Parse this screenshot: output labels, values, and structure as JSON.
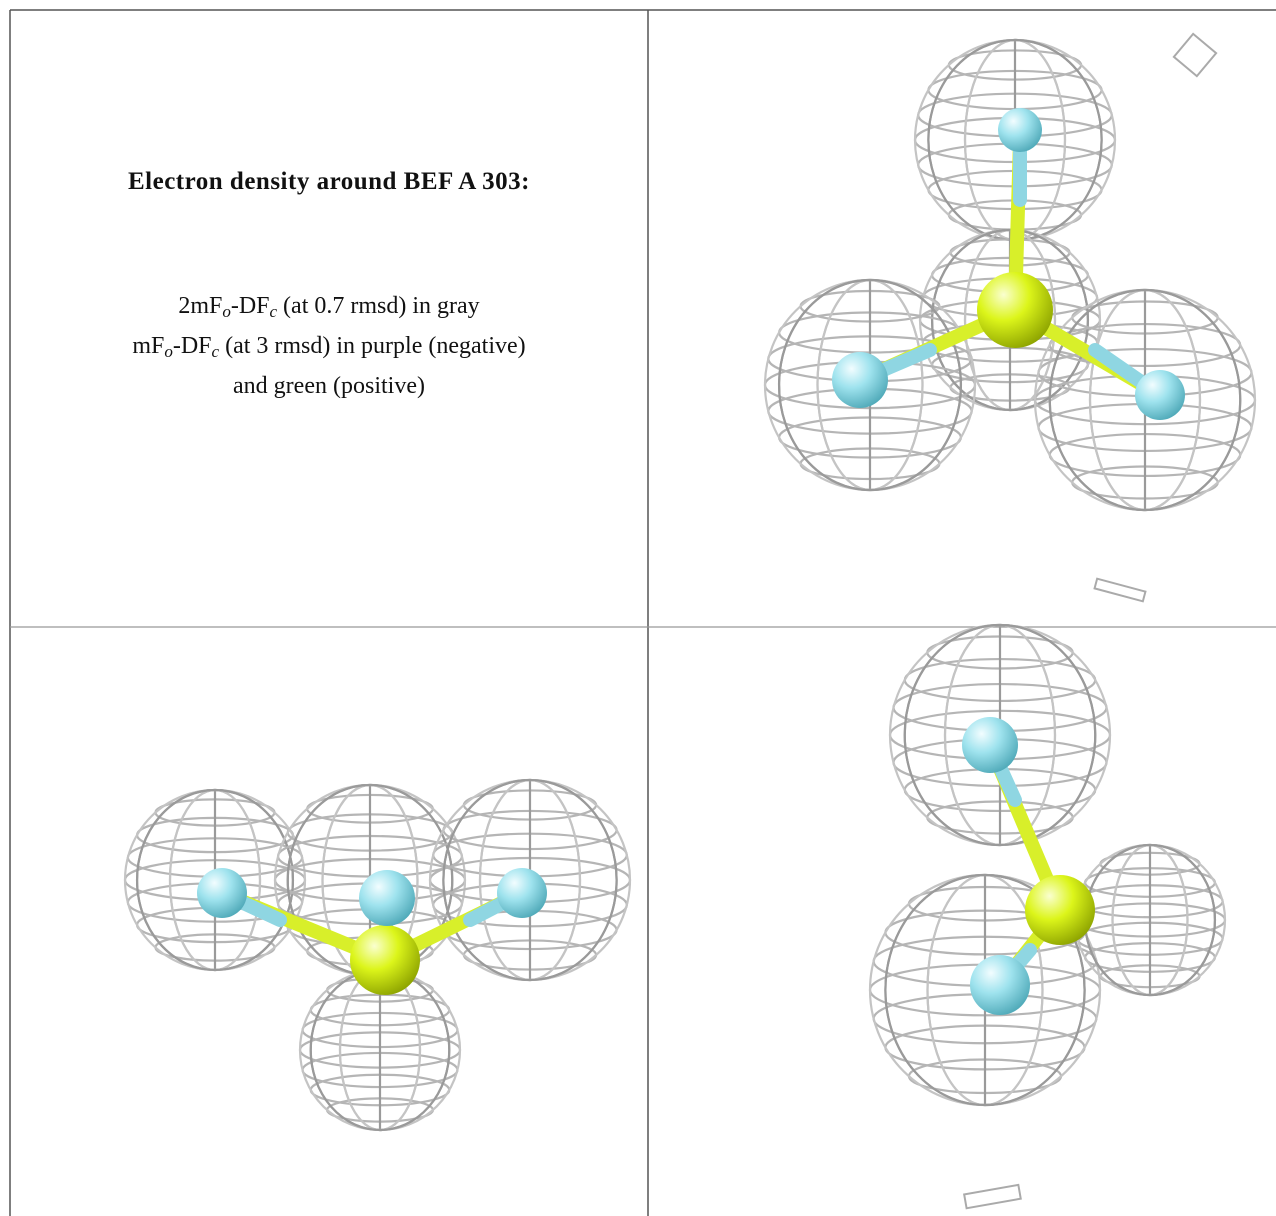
{
  "legend": {
    "title": "Electron density around BEF A 303:",
    "lines": [
      [
        "2mF",
        "o",
        "-DF",
        "c",
        " (at 0.7 rmsd) in gray"
      ],
      [
        "mF",
        "o",
        "-DF",
        "c",
        " (at 3 rmsd) in purple (negative)"
      ],
      [
        "and green (positive)"
      ]
    ]
  }
}
